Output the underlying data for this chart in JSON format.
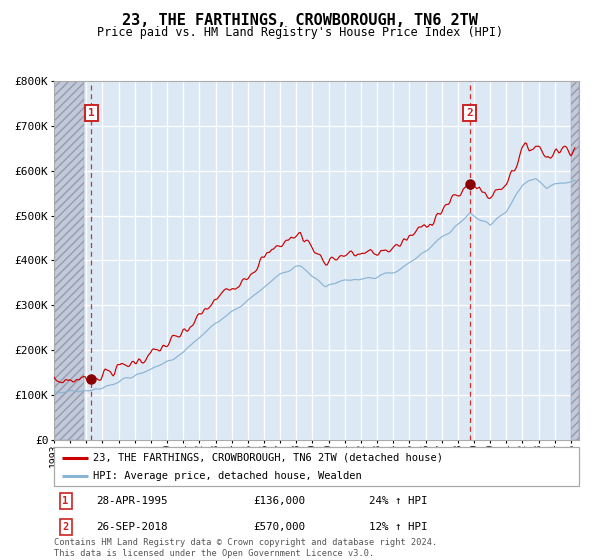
{
  "title": "23, THE FARTHINGS, CROWBOROUGH, TN6 2TW",
  "subtitle": "Price paid vs. HM Land Registry's House Price Index (HPI)",
  "legend_line1": "23, THE FARTHINGS, CROWBOROUGH, TN6 2TW (detached house)",
  "legend_line2": "HPI: Average price, detached house, Wealden",
  "sale1_date": "28-APR-1995",
  "sale1_price": 136000,
  "sale1_label": "24% ↑ HPI",
  "sale2_date": "26-SEP-2018",
  "sale2_price": 570000,
  "sale2_label": "12% ↑ HPI",
  "footnote": "Contains HM Land Registry data © Crown copyright and database right 2024.\nThis data is licensed under the Open Government Licence v3.0.",
  "hatch_end_year": 1994.83,
  "hatch_start_right": 2025.0,
  "xmin": 1993.0,
  "xmax": 2025.5,
  "ymin": 0,
  "ymax": 800000,
  "yticks": [
    0,
    100000,
    200000,
    300000,
    400000,
    500000,
    600000,
    700000,
    800000
  ],
  "ytick_labels": [
    "£0",
    "£100K",
    "£200K",
    "£300K",
    "£400K",
    "£500K",
    "£600K",
    "£700K",
    "£800K"
  ],
  "bg_color": "#dce9f5",
  "grid_color": "#ffffff",
  "red_line_color": "#cc0000",
  "blue_line_color": "#8ab4d4",
  "marker_color": "#880000",
  "vline_color": "#cc3333",
  "box_color": "#cc2222",
  "sale1_year": 1995.32,
  "sale2_year": 2018.74
}
